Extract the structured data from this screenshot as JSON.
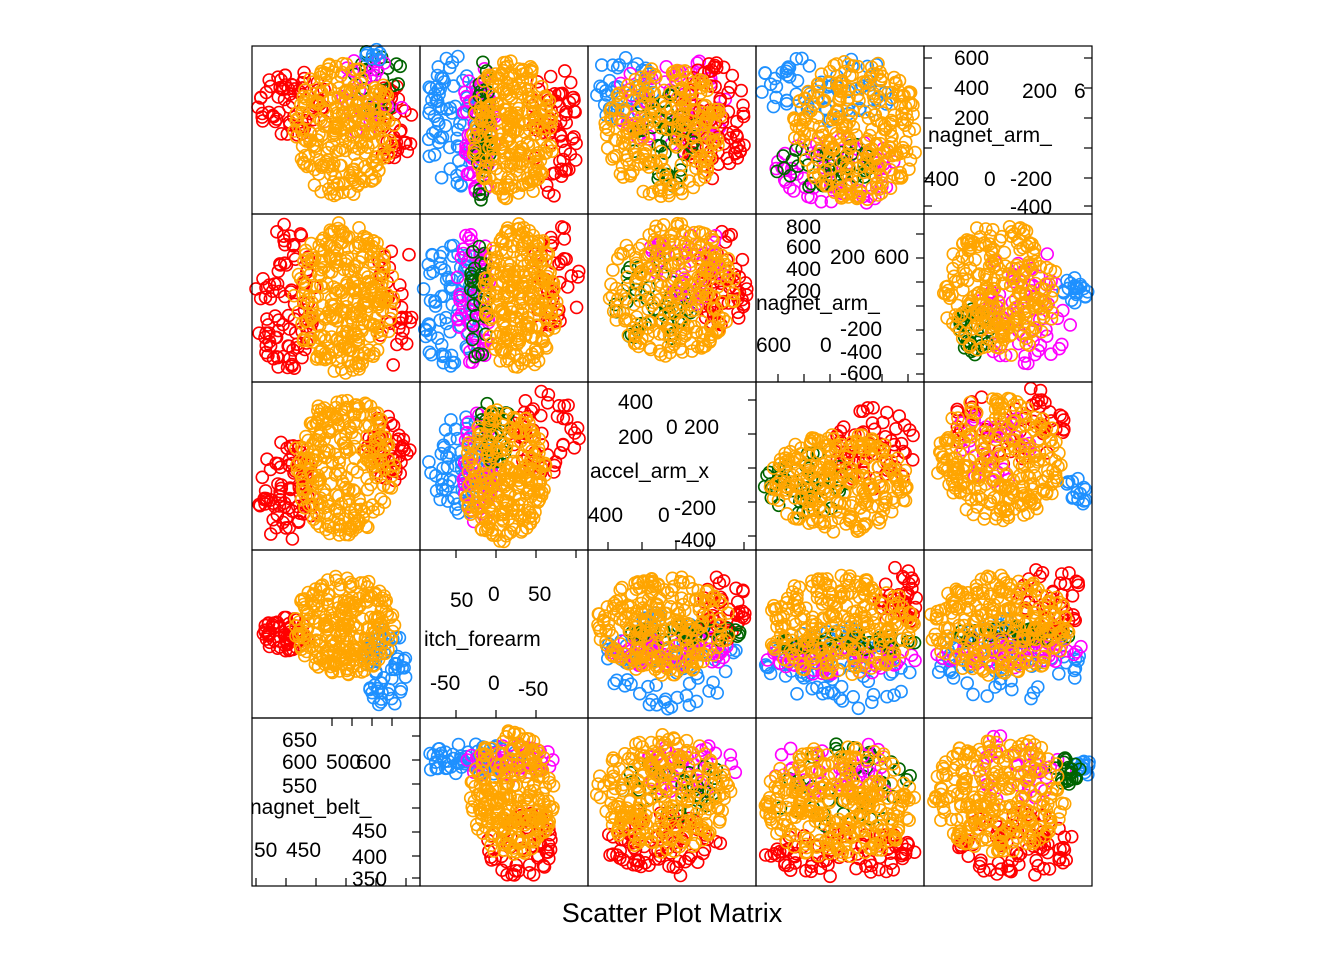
{
  "chart_data": {
    "type": "scatter",
    "title": "Scatter Plot Matrix",
    "grid": false,
    "legend": "none",
    "variables": [
      {
        "name": "magnet_belt_z",
        "label": "magnet_belt_",
        "range": [
          350,
          675
        ],
        "ticks_outer": [
          "350",
          "400",
          "450",
          "500",
          "550",
          "600",
          "650"
        ],
        "ticks_inner": [
          "450",
          "500",
          "600"
        ],
        "tick_labels_left": [
          "450"
        ],
        "label_vertical_note": "ticks shown in panel"
      },
      {
        "name": "pitch_forearm",
        "label": "itch_forearm",
        "range": [
          -90,
          90
        ],
        "ticks_upper": [
          "50",
          "0",
          "50"
        ],
        "ticks_lower": [
          "-50",
          "0",
          "-50"
        ]
      },
      {
        "name": "accel_arm_x",
        "label": "accel_arm_x",
        "range": [
          -400,
          450
        ],
        "ticks_upper": [
          "400",
          "200",
          "0",
          "200"
        ],
        "ticks_lower": [
          "400",
          "0",
          "-200",
          "-400"
        ]
      },
      {
        "name": "magnet_arm_x",
        "label": "nagnet_arm_",
        "range": [
          -700,
          800
        ],
        "ticks_upper": [
          "800",
          "600",
          "400",
          "200",
          "200",
          "600"
        ],
        "ticks_lower": [
          "600",
          "0",
          "-200",
          "-400",
          "-600"
        ]
      },
      {
        "name": "magnet_arm_y",
        "label": "nagnet_arm_",
        "range": [
          -450,
          650
        ],
        "ticks_upper": [
          "600",
          "400",
          "200",
          "200",
          "6"
        ],
        "ticks_lower": [
          "400",
          "0",
          "-200",
          "-400"
        ]
      }
    ],
    "series": [
      {
        "color": "#ff0000"
      },
      {
        "color": "#1e90ff"
      },
      {
        "color": "#006400"
      },
      {
        "color": "#ff00ff"
      },
      {
        "color": "#ffa500"
      }
    ]
  },
  "panel_texts": {
    "r0c4": {
      "label": "nagnet_arm_",
      "top_left": [
        "600",
        "400",
        "200"
      ],
      "top_right": [
        "200",
        "6"
      ],
      "bottom_left": [
        "400",
        "0",
        "-200",
        "-400"
      ]
    },
    "r1c3": {
      "label": "nagnet_arm_",
      "top_left": [
        "800",
        "600",
        "400",
        "200"
      ],
      "top_right": [
        "200",
        "600"
      ],
      "bottom": [
        "600",
        "0",
        "-200",
        "-400",
        "-600"
      ]
    },
    "r2c2": {
      "label": "accel_arm_x",
      "top": [
        "400",
        "200",
        "0",
        "200"
      ],
      "bottom": [
        "400",
        "0",
        "-200",
        "-400"
      ]
    },
    "r3c1": {
      "label": "itch_forearm",
      "top": [
        "50",
        "0",
        "50"
      ],
      "mid": [
        "-0"
      ],
      "bottom": [
        "-50",
        "0",
        "-50"
      ]
    },
    "r4c0": {
      "label": "nagnet_belt_",
      "top": [
        "650",
        "600",
        "500",
        "600",
        "550"
      ],
      "bottom": [
        "50",
        "450",
        "450",
        "400",
        "350"
      ]
    }
  },
  "caption": "Scatter Plot Matrix",
  "colors": {
    "red": "#ff0000",
    "blue": "#1e90ff",
    "green": "#006400",
    "magenta": "#ff00ff",
    "orange": "#ffa500"
  }
}
